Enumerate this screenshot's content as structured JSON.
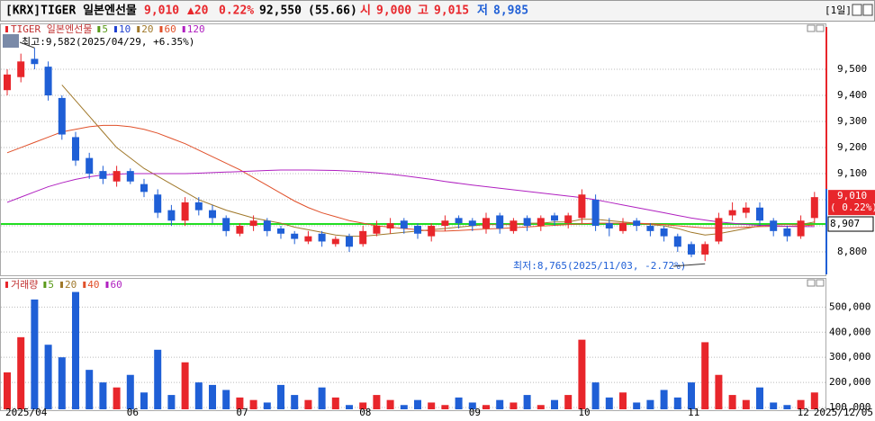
{
  "header": {
    "code": "[KRX]TIGER 일본엔선물",
    "price": "9,010",
    "change": "▲20",
    "rate": "0.22%",
    "volume": "92,550",
    "volume_rate": "(55.66)",
    "open_label": "시",
    "open": "9,000",
    "high_label": "고",
    "high": "9,015",
    "low_label": "저",
    "low": "8,985",
    "period": "[1일]"
  },
  "chart_data": [
    {
      "type": "candlestick",
      "title": "TIGER 일본엔선물",
      "up_color": "#e8262b",
      "down_color": "#1f5fd6",
      "open": [
        9420,
        9470,
        9540,
        9510,
        9390,
        9240,
        9160,
        9110,
        9070,
        9110,
        9060,
        9020,
        8960,
        8920,
        8990,
        8960,
        8930,
        8870,
        8900,
        8920,
        8890,
        8870,
        8840,
        8870,
        8830,
        8860,
        8830,
        8870,
        8890,
        8920,
        8900,
        8860,
        8900,
        8930,
        8920,
        8890,
        8940,
        8880,
        8930,
        8900,
        8940,
        8910,
        8930,
        9000,
        8910,
        8880,
        8920,
        8900,
        8890,
        8860,
        8830,
        8790,
        8840,
        8940,
        8950,
        8970,
        8920,
        8890,
        8860,
        8930
      ],
      "high": [
        9500,
        9560,
        9582,
        9530,
        9400,
        9260,
        9180,
        9130,
        9130,
        9120,
        9080,
        9040,
        8980,
        9010,
        9010,
        8980,
        8940,
        8910,
        8940,
        8930,
        8900,
        8880,
        8880,
        8880,
        8860,
        8870,
        8900,
        8920,
        8930,
        8930,
        8910,
        8910,
        8940,
        8940,
        8930,
        8950,
        8950,
        8930,
        8940,
        8940,
        8950,
        8950,
        9040,
        9020,
        8930,
        8930,
        8930,
        8910,
        8900,
        8870,
        8840,
        8840,
        8950,
        8990,
        8990,
        8990,
        8930,
        8900,
        8940,
        9030
      ],
      "low": [
        9400,
        9450,
        9500,
        9380,
        9230,
        9130,
        9080,
        9060,
        9050,
        9060,
        9010,
        8930,
        8900,
        8900,
        8940,
        8910,
        8860,
        8860,
        8880,
        8860,
        8850,
        8830,
        8830,
        8820,
        8820,
        8800,
        8820,
        8860,
        8870,
        8870,
        8850,
        8840,
        8880,
        8890,
        8880,
        8870,
        8870,
        8870,
        8880,
        8880,
        8900,
        8890,
        8910,
        8880,
        8860,
        8870,
        8880,
        8860,
        8840,
        8800,
        8780,
        8765,
        8830,
        8920,
        8930,
        8900,
        8860,
        8840,
        8850,
        8910
      ],
      "close": [
        9480,
        9530,
        9520,
        9400,
        9250,
        9150,
        9100,
        9080,
        9110,
        9070,
        9030,
        8950,
        8920,
        8990,
        8960,
        8930,
        8880,
        8900,
        8920,
        8880,
        8870,
        8850,
        8860,
        8840,
        8850,
        8820,
        8880,
        8900,
        8910,
        8890,
        8870,
        8900,
        8920,
        8910,
        8900,
        8930,
        8890,
        8920,
        8900,
        8930,
        8920,
        8940,
        9020,
        8900,
        8890,
        8910,
        8900,
        8880,
        8860,
        8820,
        8790,
        8830,
        8930,
        8960,
        8970,
        8920,
        8880,
        8860,
        8920,
        9010
      ],
      "ma_series": [
        {
          "name": "5",
          "color": "#5a9a1a"
        },
        {
          "name": "10",
          "color": "#2040d0"
        },
        {
          "name": "20",
          "color": "#a0782a",
          "values": [
            null,
            null,
            null,
            null,
            9440,
            9380,
            9320,
            9260,
            9200,
            9160,
            9120,
            9090,
            9060,
            9030,
            9000,
            8980,
            8960,
            8945,
            8930,
            8920,
            8910,
            8895,
            8885,
            8875,
            8865,
            8860,
            8860,
            8865,
            8870,
            8875,
            8880,
            8885,
            8890,
            8895,
            8900,
            8905,
            8905,
            8905,
            8910,
            8910,
            8915,
            8915,
            8925,
            8925,
            8920,
            8915,
            8910,
            8905,
            8900,
            8890,
            8875,
            8865,
            8870,
            8880,
            8890,
            8900,
            8905,
            8905,
            8905,
            8915
          ]
        },
        {
          "name": "60",
          "color": "#e0502a",
          "values": [
            9180,
            9200,
            9220,
            9240,
            9260,
            9270,
            9280,
            9285,
            9285,
            9280,
            9270,
            9255,
            9235,
            9215,
            9190,
            9165,
            9140,
            9115,
            9085,
            9055,
            9025,
            8995,
            8970,
            8950,
            8935,
            8920,
            8910,
            8900,
            8895,
            8890,
            8885,
            8880,
            8880,
            8882,
            8885,
            8888,
            8890,
            8893,
            8896,
            8899,
            8902,
            8905,
            8908,
            8910,
            8910,
            8910,
            8910,
            8908,
            8905,
            8900,
            8896,
            8892,
            8892,
            8893,
            8895,
            8897,
            8898,
            8898,
            8900,
            8903
          ]
        },
        {
          "name": "120",
          "color": "#b020c0",
          "values": [
            8990,
            9010,
            9030,
            9050,
            9065,
            9078,
            9088,
            9095,
            9098,
            9100,
            9100,
            9100,
            9100,
            9100,
            9102,
            9104,
            9106,
            9108,
            9110,
            9112,
            9114,
            9114,
            9114,
            9113,
            9112,
            9110,
            9107,
            9103,
            9098,
            9092,
            9085,
            9078,
            9070,
            9063,
            9056,
            9050,
            9044,
            9038,
            9032,
            9026,
            9020,
            9014,
            9008,
            9000,
            8990,
            8980,
            8970,
            8960,
            8950,
            8940,
            8930,
            8922,
            8915,
            8910,
            8905,
            8902,
            8900,
            8898,
            8897,
            8897
          ]
        }
      ],
      "ylim": [
        8714,
        9669
      ],
      "yticks": [
        {
          "value": 8800,
          "label": "8,800"
        },
        {
          "value": 8900,
          "label": "8,900"
        },
        {
          "value": 9000,
          "label": "9,000"
        },
        {
          "value": 9100,
          "label": "9,100"
        },
        {
          "value": 9200,
          "label": "9,200"
        },
        {
          "value": 9300,
          "label": "9,300"
        },
        {
          "value": 9400,
          "label": "9,400"
        },
        {
          "value": 9500,
          "label": "9,500"
        }
      ],
      "reference_line": {
        "value": 8907,
        "label": "8,907",
        "color": "#22dd22"
      },
      "last_rate_label": "( 0.22%)",
      "max_annotation": "최고:9,582(2025/04/29, +6.35%)",
      "min_annotation": "최저:8,765(2025/11/03, -2.72%)"
    },
    {
      "type": "bar",
      "title": "거래량",
      "values": [
        240000,
        380000,
        530000,
        350000,
        300000,
        560000,
        250000,
        200000,
        180000,
        230000,
        160000,
        330000,
        150000,
        280000,
        200000,
        190000,
        170000,
        140000,
        130000,
        120000,
        190000,
        150000,
        130000,
        180000,
        140000,
        110000,
        120000,
        150000,
        130000,
        110000,
        130000,
        120000,
        110000,
        140000,
        120000,
        110000,
        130000,
        120000,
        150000,
        110000,
        130000,
        150000,
        370000,
        200000,
        140000,
        160000,
        120000,
        130000,
        170000,
        140000,
        200000,
        360000,
        230000,
        150000,
        130000,
        180000,
        120000,
        110000,
        130000,
        160000
      ],
      "ma_series": [
        {
          "name": "5",
          "color": "#5a9a1a"
        },
        {
          "name": "20",
          "color": "#a0782a"
        },
        {
          "name": "40",
          "color": "#e0502a"
        },
        {
          "name": "60",
          "color": "#b020c0"
        }
      ],
      "ylim": [
        93000,
        605000
      ],
      "yticks": [
        {
          "value": 100000,
          "label": "100,000"
        },
        {
          "value": 200000,
          "label": "200,000"
        },
        {
          "value": 300000,
          "label": "300,000"
        },
        {
          "value": 400000,
          "label": "400,000"
        },
        {
          "value": 500000,
          "label": "500,000"
        }
      ],
      "xticks": [
        {
          "value": 0,
          "label": "2025/04"
        },
        {
          "value": 9,
          "label": "06"
        },
        {
          "value": 17,
          "label": "07"
        },
        {
          "value": 26,
          "label": "08"
        },
        {
          "value": 34,
          "label": "09"
        },
        {
          "value": 42,
          "label": "10"
        },
        {
          "value": 50,
          "label": "11"
        },
        {
          "value": 58,
          "label": "12"
        }
      ],
      "x_end_label": "2025/12/05"
    }
  ]
}
